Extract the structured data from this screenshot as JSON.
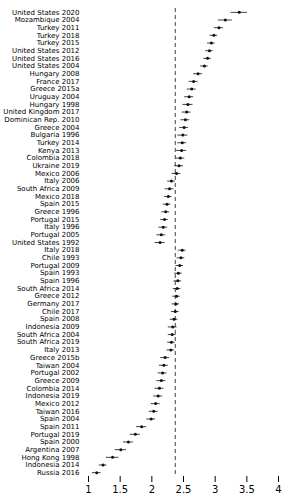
{
  "chart_data": {
    "type": "dot",
    "categories": [
      "United States 2020",
      "Mozambique 2004",
      "Turkey 2011",
      "Turkey 2018",
      "Turkey 2015",
      "United States 2012",
      "United States 2016",
      "United States 2004",
      "Hungary 2008",
      "France 2017",
      "Greece 2015a",
      "Uruguay 2004",
      "Hungary 1998",
      "United Kingdom 2017",
      "Dominican Rep. 2010",
      "Greece 2004",
      "Bulgaria 1996",
      "Turkey 2014",
      "Kenya 2013",
      "Colombia 2018",
      "Ukraine 2019",
      "Mexico 2006",
      "Italy 2006",
      "South Africa 2009",
      "Mexico 2018",
      "Spain 2015",
      "Greece 1996",
      "Portugal 2015",
      "Italy 1996",
      "Portugal 2005",
      "United States 1992",
      "Italy 2018",
      "Chile 1993",
      "Portugal 2009",
      "Spain 1993",
      "Spain 1996",
      "South Africa 2014",
      "Greece 2012",
      "Germany 2017",
      "Chile 2017",
      "Spain 2008",
      "Indonesia 2009",
      "South Africa 2004",
      "South Africa 2019",
      "Italy 2013",
      "Greece 2015b",
      "Taiwan 2004",
      "Portugal 2002",
      "Greece 2009",
      "Colombia 2014",
      "Indonesia 2019",
      "Mexico 2012",
      "Taiwan 2016",
      "Spain 2004",
      "Spain 2011",
      "Portugal 2019",
      "Spain 2000",
      "Argentina 2007",
      "Hong Kong 1998",
      "Indonesia 2014",
      "Russia 2016"
    ],
    "values": [
      3.38,
      3.16,
      3.06,
      2.98,
      2.94,
      2.91,
      2.88,
      2.83,
      2.73,
      2.66,
      2.63,
      2.59,
      2.57,
      2.55,
      2.53,
      2.51,
      2.49,
      2.48,
      2.47,
      2.45,
      2.43,
      2.39,
      2.31,
      2.28,
      2.26,
      2.24,
      2.22,
      2.2,
      2.18,
      2.15,
      2.13,
      2.48,
      2.46,
      2.44,
      2.42,
      2.41,
      2.4,
      2.39,
      2.38,
      2.37,
      2.35,
      2.33,
      2.32,
      2.31,
      2.3,
      2.21,
      2.19,
      2.17,
      2.15,
      2.12,
      2.1,
      2.06,
      2.03,
      1.99,
      1.84,
      1.74,
      1.63,
      1.51,
      1.38,
      1.23,
      1.13
    ],
    "errors": [
      0.13,
      0.11,
      0.07,
      0.06,
      0.06,
      0.06,
      0.06,
      0.06,
      0.07,
      0.07,
      0.07,
      0.07,
      0.08,
      0.07,
      0.07,
      0.07,
      0.08,
      0.07,
      0.08,
      0.07,
      0.07,
      0.07,
      0.06,
      0.07,
      0.06,
      0.06,
      0.06,
      0.06,
      0.07,
      0.07,
      0.08,
      0.06,
      0.06,
      0.06,
      0.06,
      0.06,
      0.06,
      0.06,
      0.06,
      0.06,
      0.06,
      0.07,
      0.06,
      0.06,
      0.06,
      0.07,
      0.07,
      0.07,
      0.07,
      0.07,
      0.07,
      0.07,
      0.07,
      0.07,
      0.08,
      0.08,
      0.08,
      0.09,
      0.1,
      0.06,
      0.07
    ],
    "reference_line": 2.37,
    "color": "#111111",
    "xlim": [
      1.0,
      4.0
    ],
    "xticks": [
      1,
      1.5,
      2,
      2.5,
      3,
      3.5,
      4
    ],
    "grid": false
  }
}
